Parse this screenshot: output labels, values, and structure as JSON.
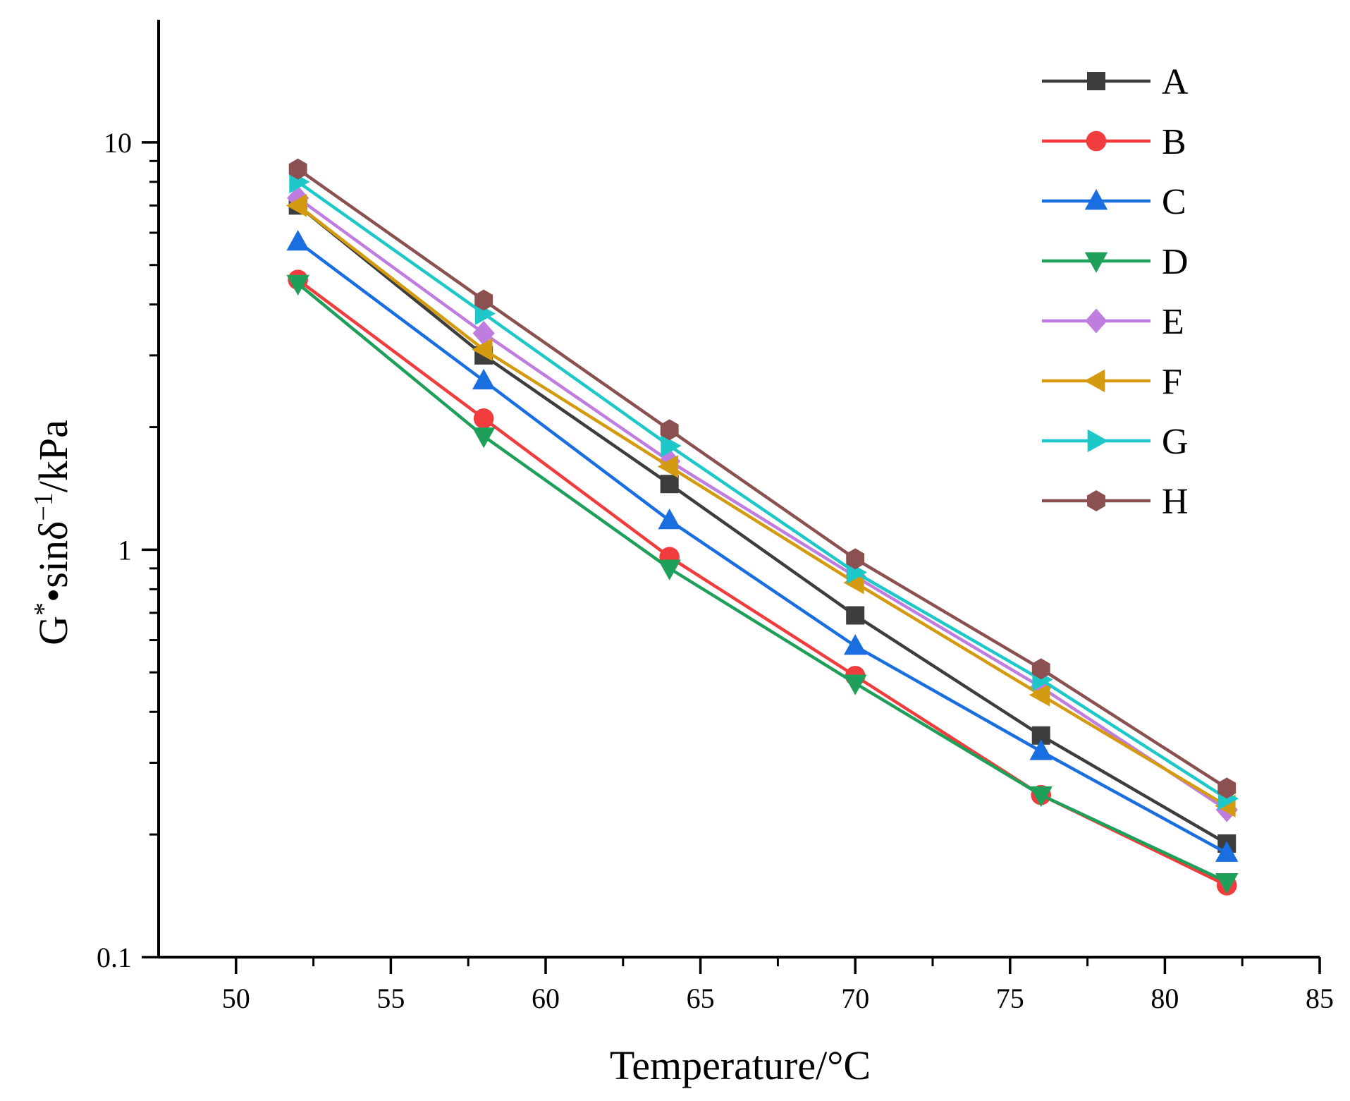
{
  "chart_data": {
    "type": "line",
    "title": "",
    "xlabel": "Temperature/°C",
    "ylabel": "G*•sinδ⁻¹/kPa",
    "ylabel_parts": {
      "main": "G",
      "sup1": "*",
      "mid": "•sinδ",
      "sup2": "−1",
      "end": "/kPa"
    },
    "xlim": [
      47.5,
      85
    ],
    "ylim": [
      0.1,
      20
    ],
    "yscale": "log",
    "x_ticks": [
      50,
      55,
      60,
      65,
      70,
      75,
      80,
      85
    ],
    "x_tick_labels": [
      "50",
      "55",
      "60",
      "65",
      "70",
      "75",
      "80",
      "85"
    ],
    "y_ticks": [
      0.1,
      1,
      10
    ],
    "y_tick_labels": [
      "0.1",
      "1",
      "10"
    ],
    "grid": false,
    "legend_position": "top-right",
    "x": [
      52,
      58,
      64,
      70,
      76,
      82
    ],
    "series": [
      {
        "name": "A",
        "color": "#3d3d3d",
        "marker": "square",
        "values": [
          7.0,
          3.0,
          1.45,
          0.69,
          0.35,
          0.19
        ]
      },
      {
        "name": "B",
        "color": "#f03c3c",
        "marker": "circle",
        "values": [
          4.6,
          2.1,
          0.96,
          0.49,
          0.25,
          0.15
        ]
      },
      {
        "name": "C",
        "color": "#1a6fe0",
        "marker": "triangle-up",
        "values": [
          5.7,
          2.6,
          1.18,
          0.58,
          0.32,
          0.18
        ]
      },
      {
        "name": "D",
        "color": "#1fa05a",
        "marker": "triangle-down",
        "values": [
          4.5,
          1.9,
          0.9,
          0.47,
          0.25,
          0.153
        ]
      },
      {
        "name": "E",
        "color": "#c07de0",
        "marker": "diamond",
        "values": [
          7.3,
          3.4,
          1.65,
          0.86,
          0.46,
          0.23
        ]
      },
      {
        "name": "F",
        "color": "#d49a10",
        "marker": "triangle-left",
        "values": [
          7.0,
          3.1,
          1.6,
          0.83,
          0.44,
          0.235
        ]
      },
      {
        "name": "G",
        "color": "#1ec8c8",
        "marker": "triangle-right",
        "values": [
          8.0,
          3.8,
          1.8,
          0.88,
          0.48,
          0.245
        ]
      },
      {
        "name": "H",
        "color": "#8b5050",
        "marker": "hexagon",
        "values": [
          8.6,
          4.1,
          1.97,
          0.95,
          0.51,
          0.26
        ]
      }
    ]
  }
}
